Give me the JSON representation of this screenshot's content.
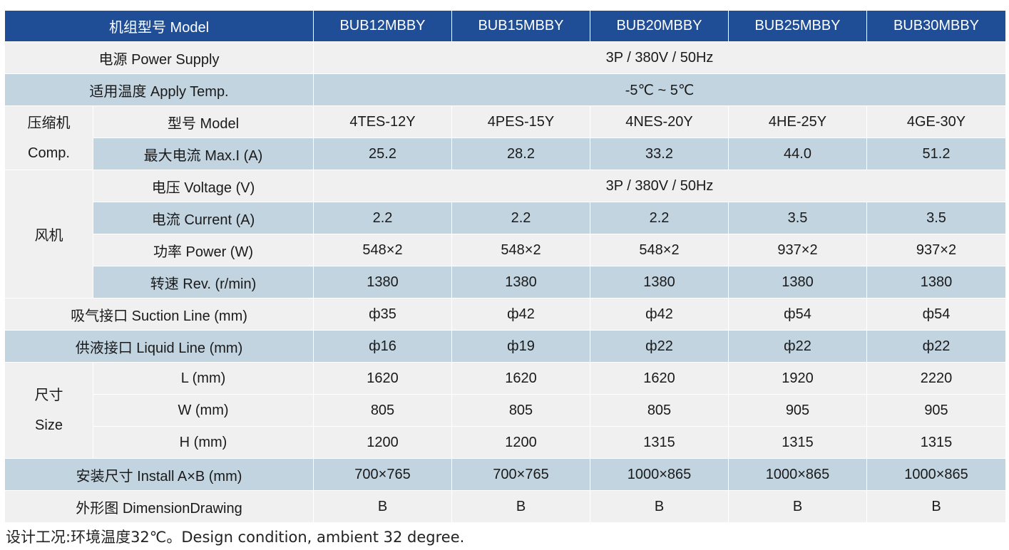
{
  "header": {
    "label": "机组型号 Model",
    "models": [
      "BUB12MBBY",
      "BUB15MBBY",
      "BUB20MBBY",
      "BUB25MBBY",
      "BUB30MBBY"
    ]
  },
  "power_supply": {
    "label": "电源 Power Supply",
    "value": "3P / 380V / 50Hz"
  },
  "apply_temp": {
    "label": "适用温度 Apply Temp.",
    "value": "-5℃ ~ 5℃"
  },
  "compressor": {
    "group_cn": "压缩机",
    "group_en": "Comp.",
    "model": {
      "label": "型号 Model",
      "values": [
        "4TES-12Y",
        "4PES-15Y",
        "4NES-20Y",
        "4HE-25Y",
        "4GE-30Y"
      ]
    },
    "max_current": {
      "label": "最大电流 Max.I (A)",
      "values": [
        "25.2",
        "28.2",
        "33.2",
        "44.0",
        "51.2"
      ]
    }
  },
  "fan": {
    "group": "风机",
    "voltage": {
      "label": "电压 Voltage (V)",
      "value": "3P / 380V / 50Hz"
    },
    "current": {
      "label": "电流 Current (A)",
      "values": [
        "2.2",
        "2.2",
        "2.2",
        "3.5",
        "3.5"
      ]
    },
    "power": {
      "label": "功率 Power (W)",
      "values": [
        "548×2",
        "548×2",
        "548×2",
        "937×2",
        "937×2"
      ]
    },
    "rev": {
      "label": "转速 Rev. (r/min)",
      "values": [
        "1380",
        "1380",
        "1380",
        "1380",
        "1380"
      ]
    }
  },
  "suction": {
    "label": "吸气接口 Suction Line (mm)",
    "values": [
      "ф35",
      "ф42",
      "ф42",
      "ф54",
      "ф54"
    ]
  },
  "liquid": {
    "label": "供液接口 Liquid Line (mm)",
    "values": [
      "ф16",
      "ф19",
      "ф22",
      "ф22",
      "ф22"
    ]
  },
  "size": {
    "group_cn": "尺寸",
    "group_en": "Size",
    "L": {
      "label": "L (mm)",
      "values": [
        "1620",
        "1620",
        "1620",
        "1920",
        "2220"
      ]
    },
    "W": {
      "label": "W (mm)",
      "values": [
        "805",
        "805",
        "805",
        "905",
        "905"
      ]
    },
    "H": {
      "label": "H (mm)",
      "values": [
        "1200",
        "1200",
        "1315",
        "1315",
        "1315"
      ]
    }
  },
  "install": {
    "label": "安装尺寸  Install A×B (mm)",
    "values": [
      "700×765",
      "700×765",
      "1000×865",
      "1000×865",
      "1000×865"
    ]
  },
  "drawing": {
    "label": "外形图 DimensionDrawing",
    "values": [
      "B",
      "B",
      "B",
      "B",
      "B"
    ]
  },
  "footnote": "设计工况:环境温度32℃。Design condition, ambient 32 degree."
}
